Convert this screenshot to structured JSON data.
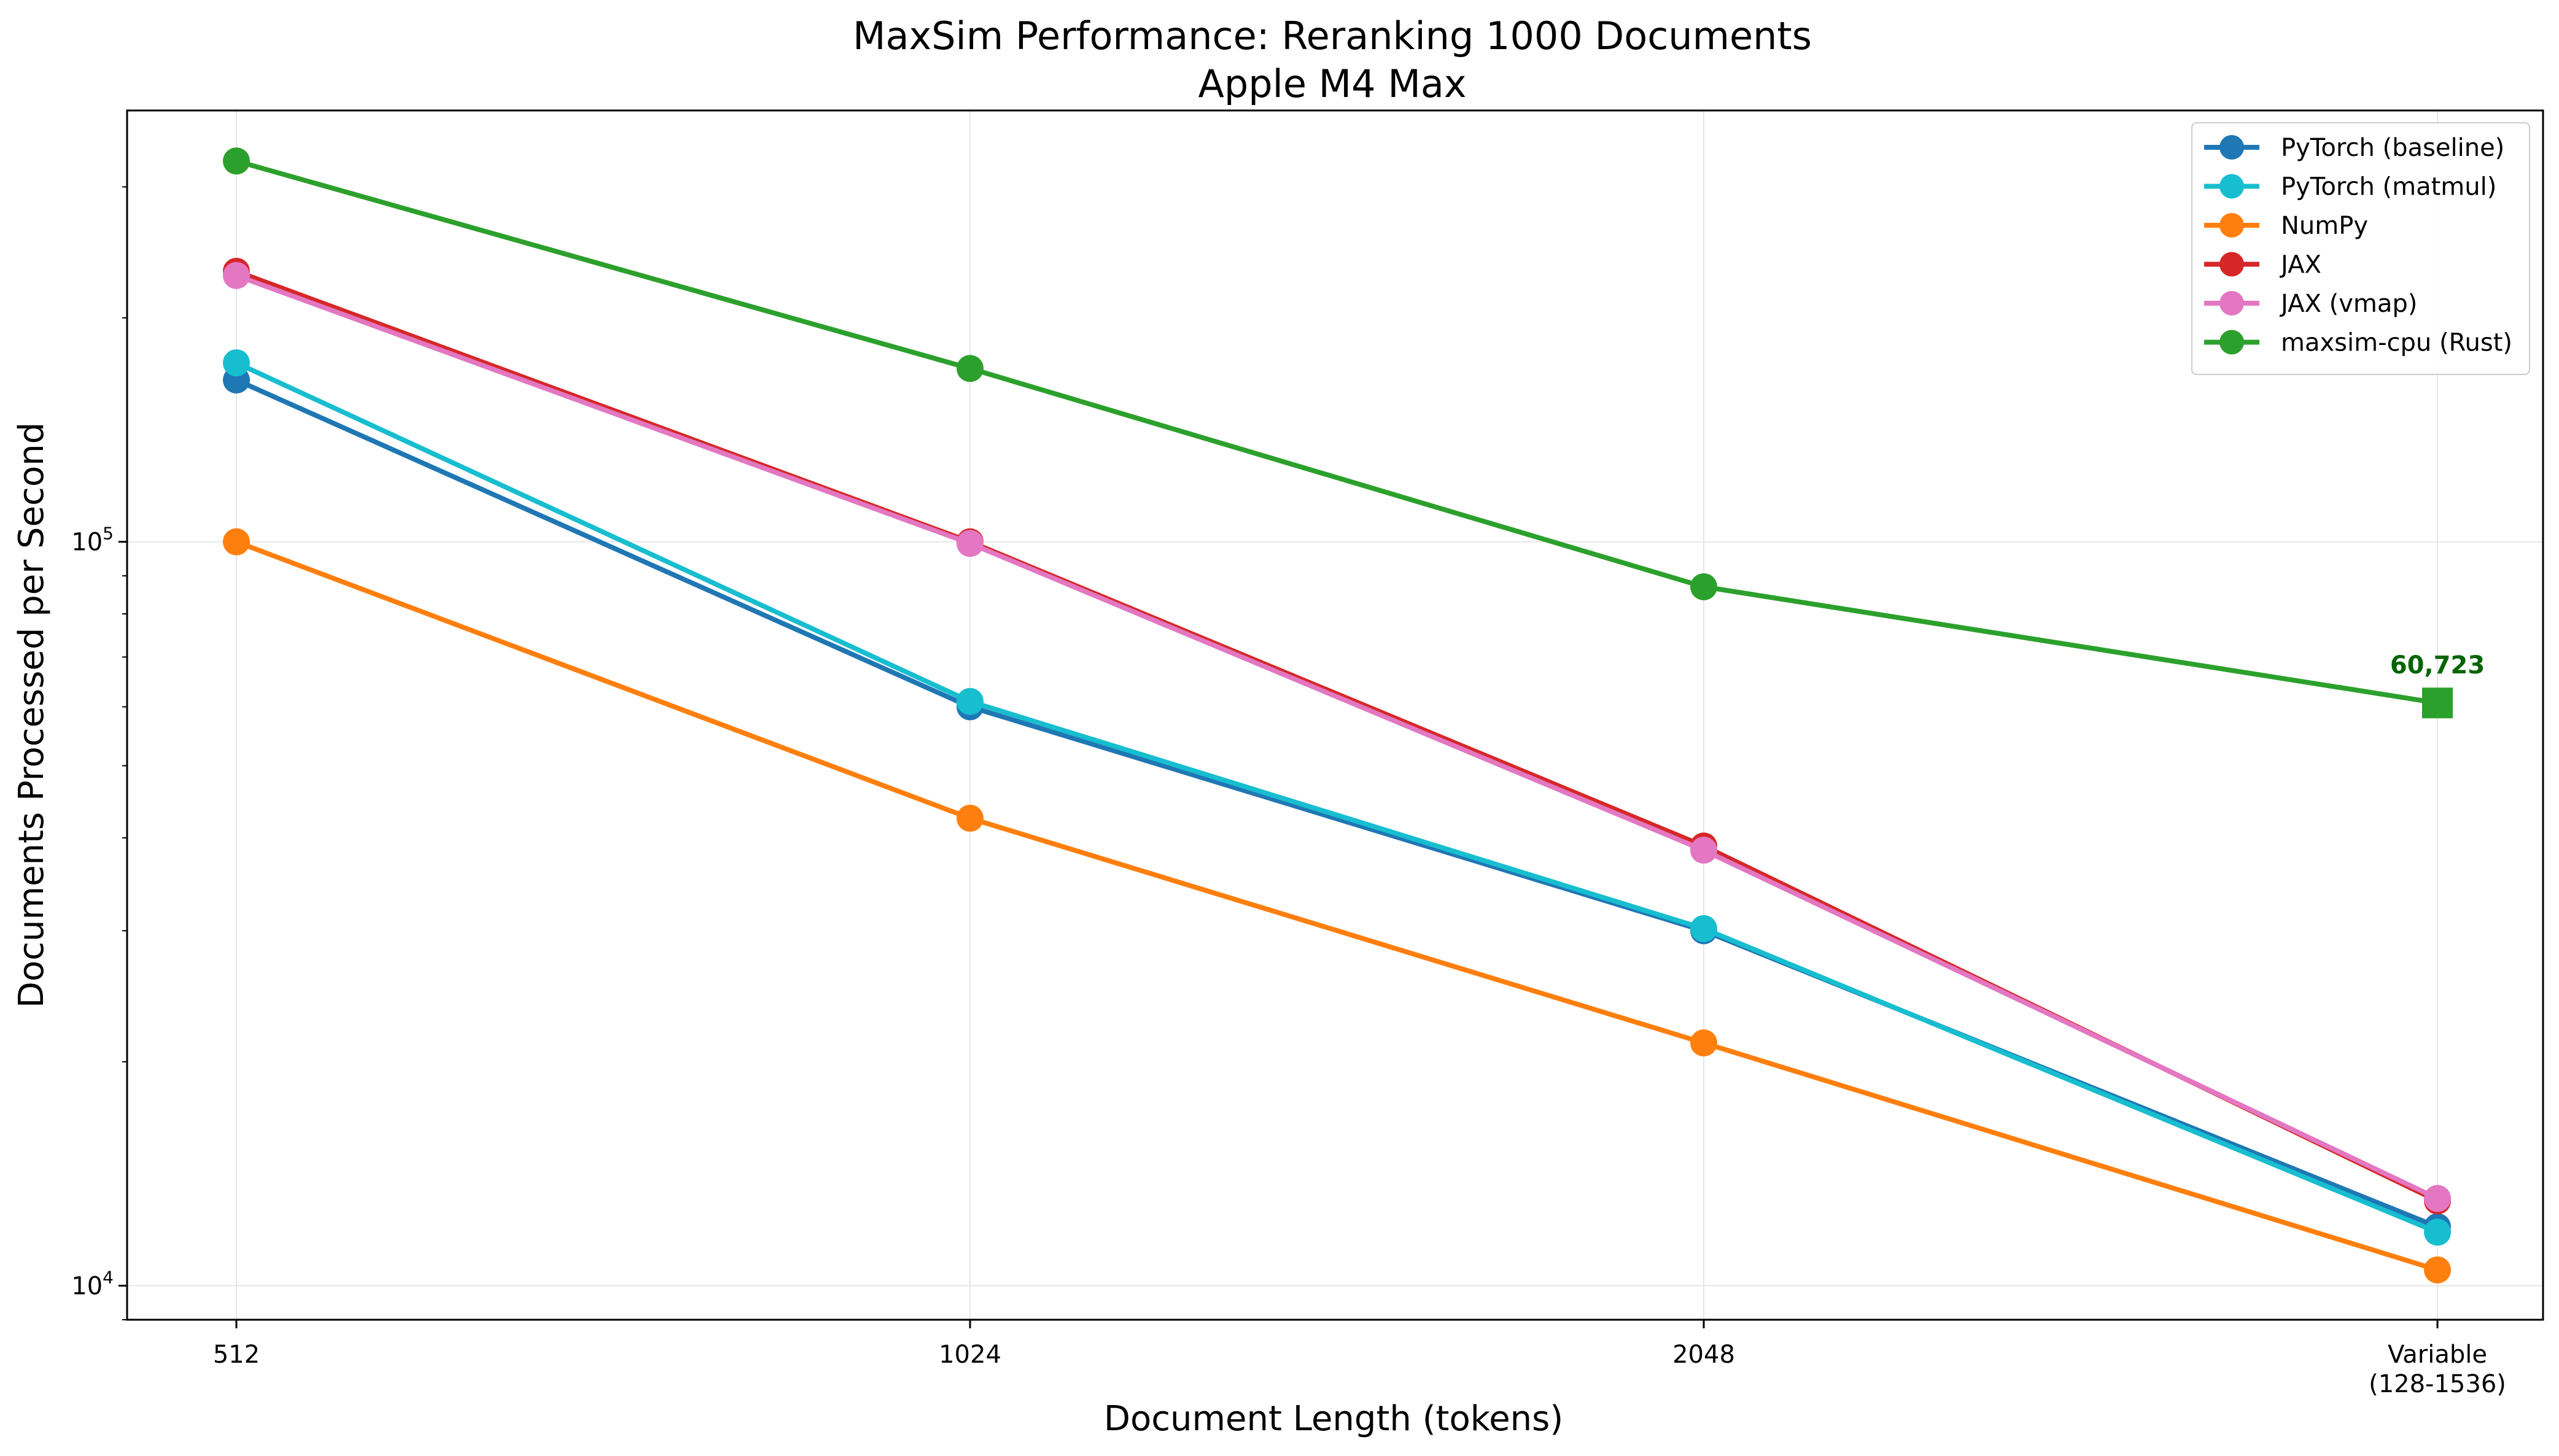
{
  "chart_data": {
    "type": "line",
    "title": "MaxSim Performance: Reranking 1000 Documents",
    "subtitle": "Apple M4 Max",
    "xlabel": "Document Length (tokens)",
    "ylabel": "Documents Processed per Second",
    "yscale": "log",
    "ylim": [
      9000,
      380000
    ],
    "grid": true,
    "legend_position": "top-right",
    "categories": [
      "512",
      "1024",
      "2048",
      "Variable\n(128-1536)"
    ],
    "y_ticks": [
      {
        "value": 10000,
        "base": "10",
        "exp": "4"
      },
      {
        "value": 100000,
        "base": "10",
        "exp": "5"
      }
    ],
    "series": [
      {
        "name": "PyTorch (baseline)",
        "color": "#1f77b4",
        "values": [
          165000,
          60000,
          30000,
          12000
        ]
      },
      {
        "name": "PyTorch (matmul)",
        "color": "#17becf",
        "values": [
          174000,
          61000,
          30200,
          11800
        ]
      },
      {
        "name": "NumPy",
        "color": "#ff7f0e",
        "values": [
          100000,
          42500,
          21200,
          10500
        ]
      },
      {
        "name": "JAX",
        "color": "#d62728",
        "values": [
          231000,
          100000,
          39000,
          13000
        ]
      },
      {
        "name": "JAX (vmap)",
        "color": "#e377c2",
        "values": [
          228000,
          99500,
          38500,
          13100
        ]
      },
      {
        "name": "maxsim-cpu (Rust)",
        "color": "#2ca02c",
        "values": [
          325000,
          171000,
          87000,
          60723
        ],
        "last_marker": "square"
      }
    ],
    "annotation": {
      "text": "60,723",
      "series": "maxsim-cpu (Rust)",
      "category_index": 3
    }
  }
}
